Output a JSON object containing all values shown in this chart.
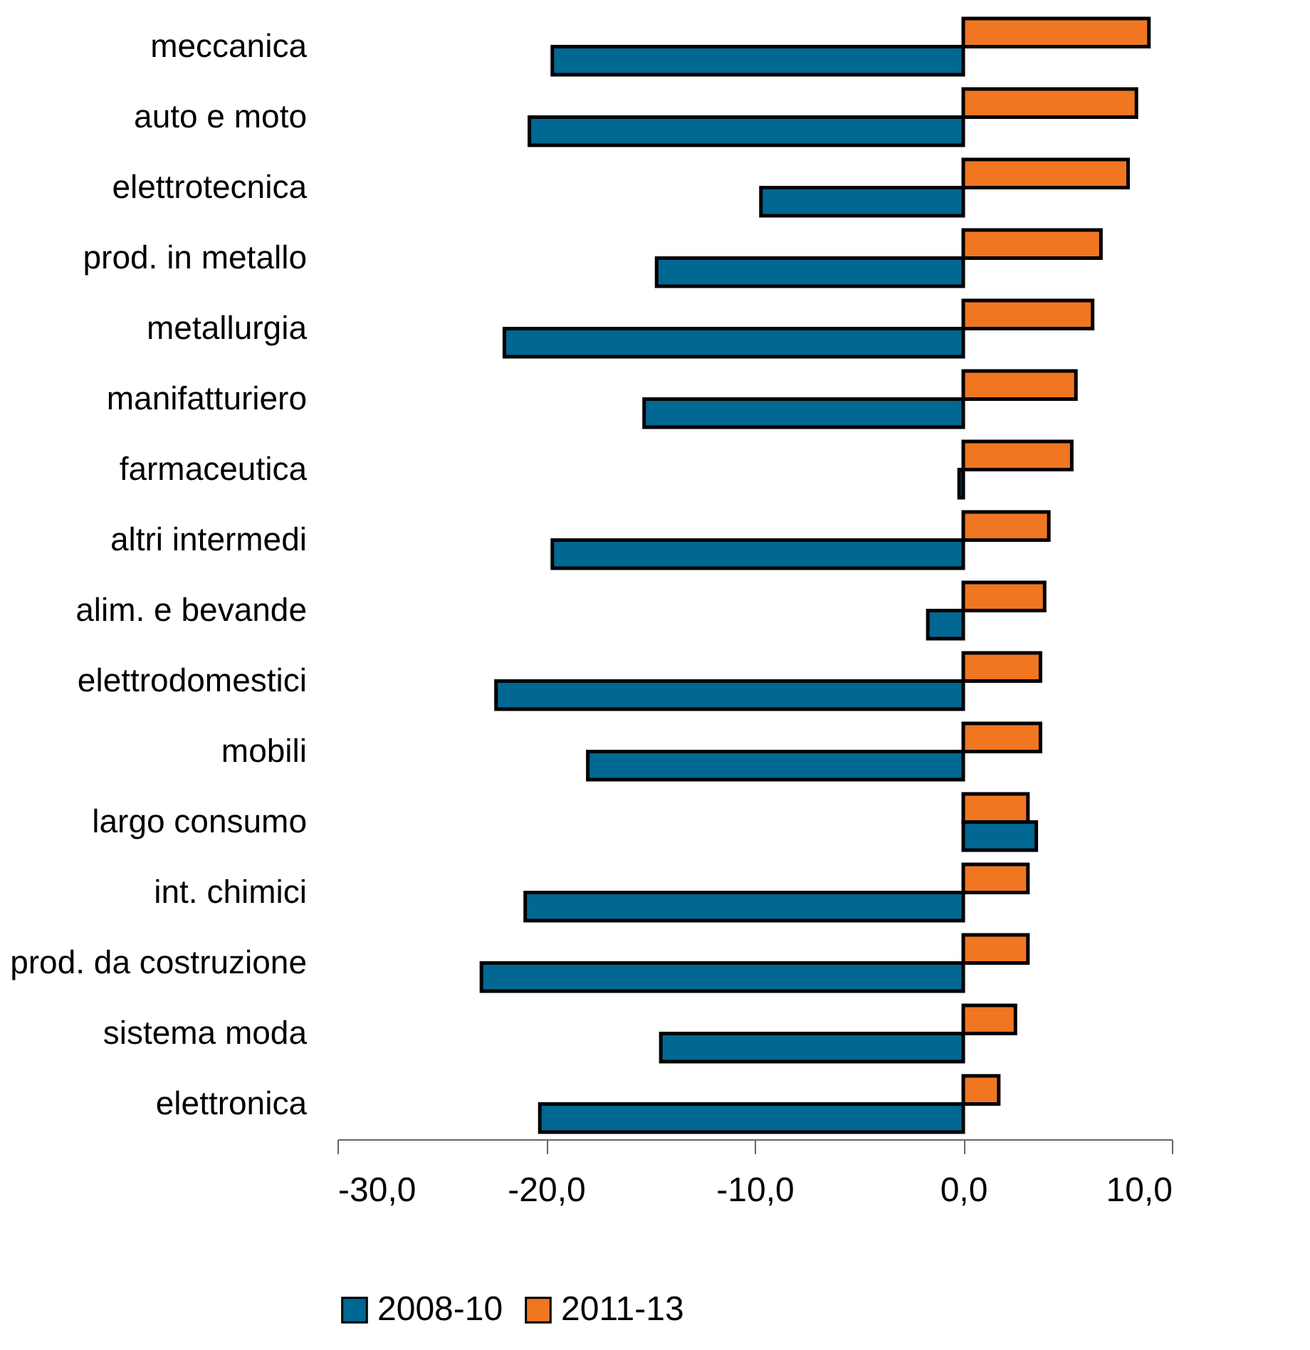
{
  "chart_data": {
    "type": "bar",
    "orientation": "horizontal",
    "categories": [
      "meccanica",
      "auto e moto",
      "elettrotecnica",
      "prod. in metallo",
      "metallurgia",
      "manifatturiero",
      "farmaceutica",
      "altri intermedi",
      "alim. e bevande",
      "elettrodomestici",
      "mobili",
      "largo consumo",
      "int. chimici",
      "prod. da costruzione",
      "sistema moda",
      "elettronica"
    ],
    "series": [
      {
        "name": "2008-10",
        "color": "#006892",
        "values": [
          -19.7,
          -20.8,
          -9.7,
          -14.7,
          -22.0,
          -15.3,
          -0.2,
          -19.7,
          -1.7,
          -22.4,
          -18.0,
          3.5,
          -21.0,
          -23.1,
          -14.5,
          -20.3
        ]
      },
      {
        "name": "2011-13",
        "color": "#f07622",
        "values": [
          8.9,
          8.3,
          7.9,
          6.6,
          6.2,
          5.4,
          5.2,
          4.1,
          3.9,
          3.7,
          3.7,
          3.1,
          3.1,
          3.1,
          2.5,
          1.7
        ]
      }
    ],
    "xlim": [
      -30,
      10
    ],
    "xticks": [
      {
        "value": -30,
        "label": "-30,0"
      },
      {
        "value": -20,
        "label": "-20,0"
      },
      {
        "value": -10,
        "label": "-10,0"
      },
      {
        "value": 0,
        "label": "0,0"
      },
      {
        "value": 10,
        "label": "10,0"
      }
    ],
    "grid": false,
    "legend": "bottom"
  }
}
